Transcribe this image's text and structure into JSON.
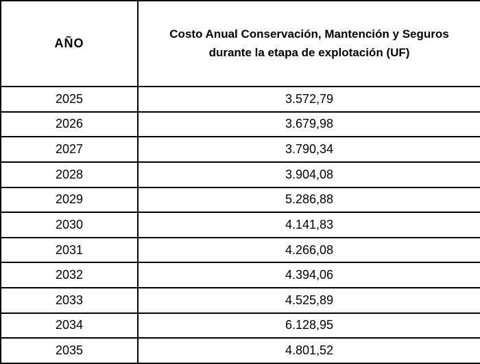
{
  "table": {
    "columns": [
      {
        "label": "AÑO"
      },
      {
        "label": "Costo Anual Conservación, Mantención y Seguros durante la etapa de explotación (UF)"
      }
    ],
    "rows": [
      {
        "year": "2025",
        "cost": "3.572,79"
      },
      {
        "year": "2026",
        "cost": "3.679,98"
      },
      {
        "year": "2027",
        "cost": "3.790,34"
      },
      {
        "year": "2028",
        "cost": "3.904,08"
      },
      {
        "year": "2029",
        "cost": "5.286,88"
      },
      {
        "year": "2030",
        "cost": "4.141,83"
      },
      {
        "year": "2031",
        "cost": "4.266,08"
      },
      {
        "year": "2032",
        "cost": "4.394,06"
      },
      {
        "year": "2033",
        "cost": "4.525,89"
      },
      {
        "year": "2034",
        "cost": "6.128,95"
      },
      {
        "year": "2035",
        "cost": "4.801,52"
      }
    ]
  },
  "colors": {
    "border": "#000000",
    "background": "#ffffff",
    "text": "#000000"
  }
}
